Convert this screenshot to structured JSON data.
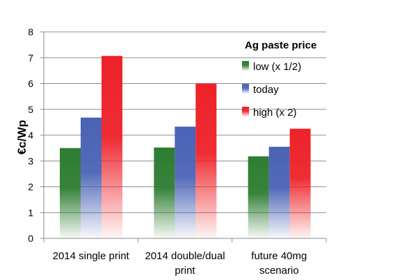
{
  "chart_data": {
    "type": "bar",
    "ylabel": "€c/Wp",
    "ylim": [
      0,
      8
    ],
    "yticks": [
      "0",
      "1",
      "2",
      "3",
      "4",
      "5",
      "6",
      "7",
      "8"
    ],
    "grid": true,
    "legend_position": "top-right",
    "legend_title": "Ag paste price",
    "categories": [
      [
        "2014 single print"
      ],
      [
        "2014 double/dual",
        "print"
      ],
      [
        "future 40mg",
        "scenario"
      ]
    ],
    "series": [
      {
        "name": "low (x 1/2)",
        "color": "#2e7d32",
        "values": [
          3.5,
          3.52,
          3.18
        ]
      },
      {
        "name": "today",
        "color": "#4a63b5",
        "values": [
          4.68,
          4.33,
          3.55
        ]
      },
      {
        "name": "high (x 2)",
        "color": "#ee2229",
        "values": [
          7.07,
          6.0,
          4.25
        ]
      }
    ]
  }
}
